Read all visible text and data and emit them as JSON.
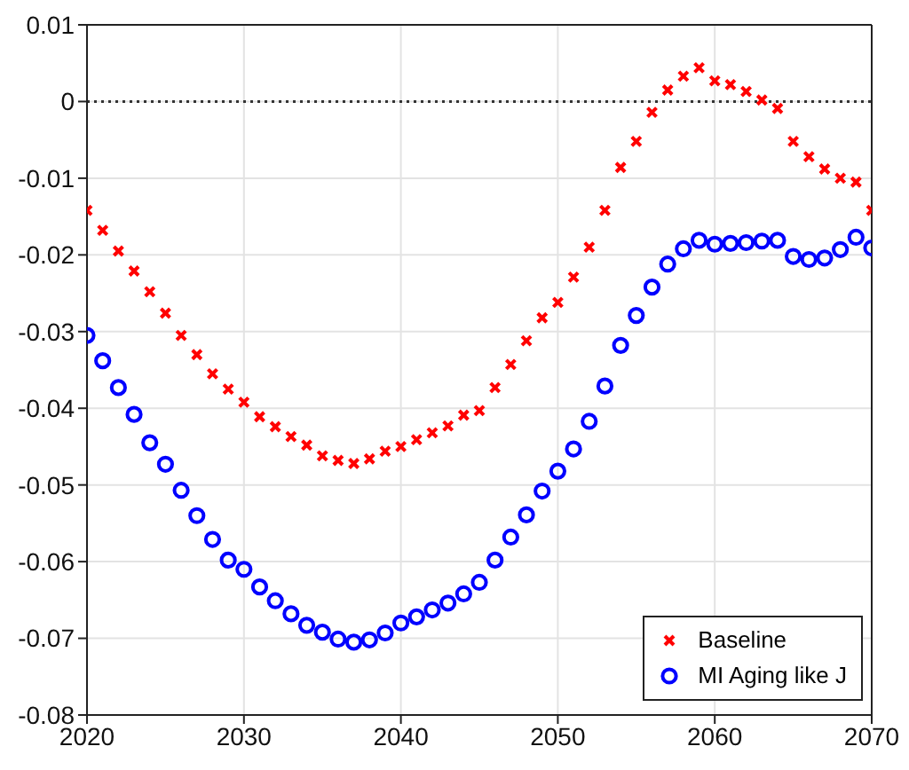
{
  "chart_data": {
    "type": "scatter",
    "x": [
      2020,
      2021,
      2022,
      2023,
      2024,
      2025,
      2026,
      2027,
      2028,
      2029,
      2030,
      2031,
      2032,
      2033,
      2034,
      2035,
      2036,
      2037,
      2038,
      2039,
      2040,
      2041,
      2042,
      2043,
      2044,
      2045,
      2046,
      2047,
      2048,
      2049,
      2050,
      2051,
      2052,
      2053,
      2054,
      2055,
      2056,
      2057,
      2058,
      2059,
      2060,
      2061,
      2062,
      2063,
      2064,
      2065,
      2066,
      2067,
      2068,
      2069,
      2070
    ],
    "series": [
      {
        "name": "Baseline",
        "color": "#ff0000",
        "marker": "cross",
        "values": [
          -0.0142,
          -0.0168,
          -0.0195,
          -0.0221,
          -0.0248,
          -0.0276,
          -0.0305,
          -0.033,
          -0.0355,
          -0.0375,
          -0.0392,
          -0.0411,
          -0.0424,
          -0.0437,
          -0.0448,
          -0.0462,
          -0.0468,
          -0.0472,
          -0.0466,
          -0.0456,
          -0.045,
          -0.0441,
          -0.0432,
          -0.0423,
          -0.0409,
          -0.0403,
          -0.0373,
          -0.0343,
          -0.0312,
          -0.0282,
          -0.0262,
          -0.0229,
          -0.019,
          -0.0142,
          -0.0086,
          -0.0052,
          -0.0014,
          0.0015,
          0.0033,
          0.0044,
          0.0027,
          0.0022,
          0.0013,
          0.0002,
          -0.0009,
          -0.0052,
          -0.0072,
          -0.0088,
          -0.01,
          -0.0105,
          -0.0142
        ]
      },
      {
        "name": "MI Aging like J",
        "color": "#0000ff",
        "marker": "circle",
        "values": [
          -0.0305,
          -0.0338,
          -0.0373,
          -0.0408,
          -0.0445,
          -0.0473,
          -0.0507,
          -0.054,
          -0.0571,
          -0.0598,
          -0.061,
          -0.0633,
          -0.0651,
          -0.0668,
          -0.0683,
          -0.0692,
          -0.0701,
          -0.0705,
          -0.0702,
          -0.0693,
          -0.068,
          -0.0672,
          -0.0663,
          -0.0654,
          -0.0642,
          -0.0627,
          -0.0598,
          -0.0568,
          -0.0539,
          -0.0508,
          -0.0482,
          -0.0453,
          -0.0417,
          -0.0371,
          -0.0318,
          -0.0279,
          -0.0242,
          -0.0212,
          -0.0192,
          -0.0181,
          -0.0186,
          -0.0185,
          -0.0184,
          -0.0182,
          -0.0181,
          -0.0202,
          -0.0206,
          -0.0204,
          -0.0193,
          -0.0177,
          -0.0191
        ]
      }
    ],
    "xlim": [
      2020,
      2070
    ],
    "xticks": [
      2020,
      2030,
      2040,
      2050,
      2060,
      2070
    ],
    "ylim": [
      -0.08,
      0.01
    ],
    "yticks": [
      -0.08,
      -0.07,
      -0.06,
      -0.05,
      -0.04,
      -0.03,
      -0.02,
      -0.01,
      0,
      0.01
    ],
    "grid": true,
    "legend": "bottom right",
    "ref_lines": [
      {
        "axis": "y",
        "value": 0,
        "color": "#333333",
        "line_style": "dotted"
      }
    ]
  }
}
